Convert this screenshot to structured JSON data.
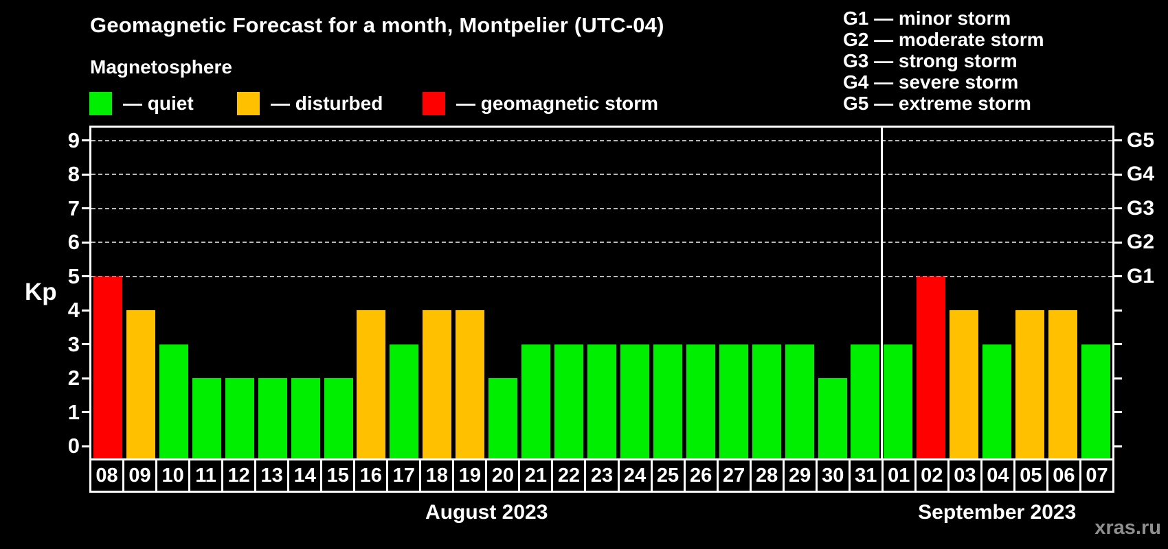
{
  "header": {
    "title": "Geomagnetic Forecast for a month, Montpelier (UTC-04)",
    "subtitle": "Magnetosphere"
  },
  "status_legend": [
    {
      "key": "quiet",
      "label": "— quiet",
      "color": "#00ee00"
    },
    {
      "key": "disturbed",
      "label": "— disturbed",
      "color": "#ffc000"
    },
    {
      "key": "storm",
      "label": "— geomagnetic storm",
      "color": "#ff0000"
    }
  ],
  "g_legend": {
    "lines": [
      "G1 — minor storm",
      "G2 — moderate storm",
      "G3 — strong storm",
      "G4 — severe storm",
      "G5 — extreme storm"
    ]
  },
  "axes": {
    "y_label": "Kp",
    "y_ticks": [
      "0",
      "1",
      "2",
      "3",
      "4",
      "5",
      "6",
      "7",
      "8",
      "9"
    ],
    "right_labels": [
      {
        "kp": 5,
        "label": "G1"
      },
      {
        "kp": 6,
        "label": "G2"
      },
      {
        "kp": 7,
        "label": "G3"
      },
      {
        "kp": 8,
        "label": "G4"
      },
      {
        "kp": 9,
        "label": "G5"
      }
    ]
  },
  "watermark": "xras.ru",
  "colors": {
    "quiet": "#00ee00",
    "disturbed": "#ffc000",
    "storm": "#ff0000",
    "background": "#000000",
    "gridline": "#b9b9b9"
  },
  "chart_data": {
    "type": "bar",
    "title": "Geomagnetic Forecast for a month, Montpelier (UTC-04)",
    "xlabel": "",
    "ylabel": "Kp",
    "ylim": [
      0,
      9.4
    ],
    "grid": "dashed horizontal at Kp 5-9",
    "gridlines_at": [
      5,
      6,
      7,
      8,
      9
    ],
    "legend_position": "top-left",
    "months": [
      {
        "label": "August 2023",
        "categories": [
          "08",
          "09",
          "10",
          "11",
          "12",
          "13",
          "14",
          "15",
          "16",
          "17",
          "18",
          "19",
          "20",
          "21",
          "22",
          "23",
          "24",
          "25",
          "26",
          "27",
          "28",
          "29",
          "30",
          "31"
        ],
        "values": [
          5,
          4,
          3,
          2,
          2,
          2,
          2,
          2,
          4,
          3,
          4,
          4,
          2,
          3,
          3,
          3,
          3,
          3,
          3,
          3,
          3,
          3,
          2,
          3
        ],
        "status": [
          "storm",
          "disturbed",
          "quiet",
          "quiet",
          "quiet",
          "quiet",
          "quiet",
          "quiet",
          "disturbed",
          "quiet",
          "disturbed",
          "disturbed",
          "quiet",
          "quiet",
          "quiet",
          "quiet",
          "quiet",
          "quiet",
          "quiet",
          "quiet",
          "quiet",
          "quiet",
          "quiet",
          "quiet"
        ]
      },
      {
        "label": "September 2023",
        "categories": [
          "01",
          "02",
          "03",
          "04",
          "05",
          "06",
          "07"
        ],
        "values": [
          3,
          5,
          4,
          3,
          4,
          4,
          3
        ],
        "status": [
          "quiet",
          "storm",
          "disturbed",
          "quiet",
          "disturbed",
          "disturbed",
          "quiet"
        ]
      }
    ]
  }
}
